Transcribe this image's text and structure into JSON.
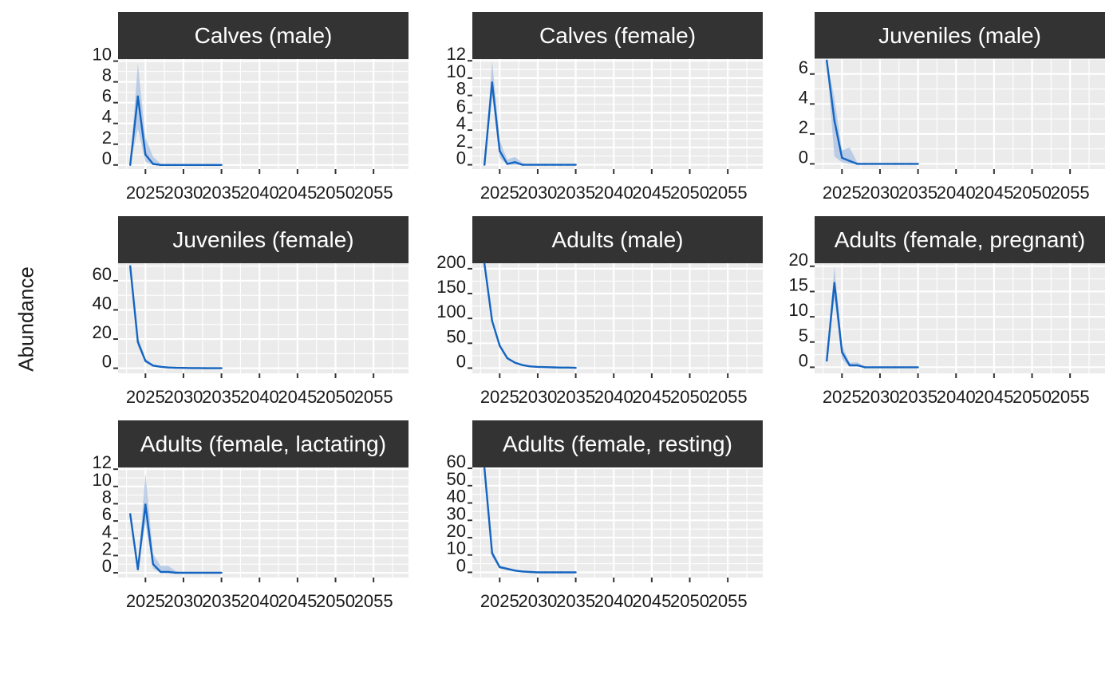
{
  "ylabel": "Abundance",
  "colors": {
    "line": "#1565C0",
    "ribbon": "#a9c1e3",
    "panel_bg": "#ebebeb",
    "strip_bg": "#333333",
    "strip_text": "#ffffff",
    "grid": "#ffffff"
  },
  "chart_data": [
    {
      "type": "line",
      "title": "Calves (male)",
      "x_ticks": [
        "2025",
        "2030",
        "2035",
        "2040",
        "2045",
        "2050",
        "2055"
      ],
      "y_ticks": [
        "0",
        "2",
        "4",
        "6",
        "8",
        "10"
      ],
      "xlim": [
        2021.4,
        2059.6
      ],
      "ylim": [
        -0.4,
        10.2
      ],
      "x": [
        2023,
        2024,
        2025,
        2026,
        2027,
        2028,
        2029,
        2030,
        2031,
        2032,
        2033,
        2034,
        2035
      ],
      "y": [
        0,
        6.6,
        1.0,
        0.1,
        0,
        0,
        0,
        0,
        0,
        0,
        0,
        0,
        0
      ],
      "ymin": [
        0,
        3.5,
        0.3,
        0,
        0,
        0,
        0,
        0,
        0,
        0,
        0,
        0,
        0
      ],
      "ymax": [
        0,
        9.8,
        2.6,
        0.8,
        0.1,
        0,
        0,
        0,
        0,
        0,
        0,
        0,
        0
      ]
    },
    {
      "type": "line",
      "title": "Calves (female)",
      "x_ticks": [
        "2025",
        "2030",
        "2035",
        "2040",
        "2045",
        "2050",
        "2055"
      ],
      "y_ticks": [
        "0",
        "2",
        "4",
        "6",
        "8",
        "10",
        "12"
      ],
      "xlim": [
        2021.4,
        2059.6
      ],
      "ylim": [
        -0.5,
        12.2
      ],
      "x": [
        2023,
        2024,
        2025,
        2026,
        2027,
        2028,
        2029,
        2030,
        2031,
        2032,
        2033,
        2034,
        2035
      ],
      "y": [
        0,
        9.5,
        1.6,
        0.1,
        0.3,
        0,
        0,
        0,
        0,
        0,
        0,
        0,
        0
      ],
      "ymin": [
        0,
        8.0,
        0.8,
        0,
        0,
        0,
        0,
        0,
        0,
        0,
        0,
        0,
        0
      ],
      "ymax": [
        0,
        12.0,
        2.8,
        0.6,
        0.9,
        0.2,
        0,
        0,
        0,
        0,
        0,
        0,
        0
      ]
    },
    {
      "type": "line",
      "title": "Juveniles (male)",
      "x_ticks": [
        "2025",
        "2030",
        "2035",
        "2040",
        "2045",
        "2050",
        "2055"
      ],
      "y_ticks": [
        "0",
        "2",
        "4",
        "6"
      ],
      "xlim": [
        2021.4,
        2059.6
      ],
      "ylim": [
        -0.35,
        7.0
      ],
      "x": [
        2023,
        2024,
        2025,
        2026,
        2027,
        2028,
        2029,
        2030,
        2031,
        2032,
        2033,
        2034,
        2035
      ],
      "y": [
        6.9,
        2.9,
        0.4,
        0.2,
        0,
        0,
        0,
        0,
        0,
        0,
        0,
        0,
        0
      ],
      "ymin": [
        6.9,
        0.5,
        0.1,
        0,
        0,
        0,
        0,
        0,
        0,
        0,
        0,
        0,
        0
      ],
      "ymax": [
        6.9,
        4.4,
        0.9,
        1.1,
        0.1,
        0,
        0,
        0,
        0,
        0,
        0,
        0,
        0
      ]
    },
    {
      "type": "line",
      "title": "Juveniles (female)",
      "x_ticks": [
        "2025",
        "2030",
        "2035",
        "2040",
        "2045",
        "2050",
        "2055"
      ],
      "y_ticks": [
        "0",
        "20",
        "40",
        "60"
      ],
      "xlim": [
        2021.4,
        2059.6
      ],
      "ylim": [
        -3.5,
        72
      ],
      "x": [
        2023,
        2024,
        2025,
        2026,
        2027,
        2028,
        2029,
        2030,
        2031,
        2032,
        2033,
        2034,
        2035
      ],
      "y": [
        70,
        18,
        5,
        1.8,
        1,
        0.5,
        0.3,
        0.2,
        0.1,
        0.1,
        0,
        0,
        0
      ],
      "ymin": [
        70,
        15,
        3.8,
        1.2,
        0.6,
        0.3,
        0.1,
        0.1,
        0,
        0,
        0,
        0,
        0
      ],
      "ymax": [
        70,
        21,
        6.5,
        2.6,
        1.5,
        0.8,
        0.5,
        0.3,
        0.2,
        0.1,
        0.1,
        0,
        0
      ]
    },
    {
      "type": "line",
      "title": "Adults (male)",
      "x_ticks": [
        "2025",
        "2030",
        "2035",
        "2040",
        "2045",
        "2050",
        "2055"
      ],
      "y_ticks": [
        "0",
        "50",
        "100",
        "150",
        "200"
      ],
      "xlim": [
        2021.4,
        2059.6
      ],
      "ylim": [
        -10.5,
        211
      ],
      "x": [
        2023,
        2024,
        2025,
        2026,
        2027,
        2028,
        2029,
        2030,
        2031,
        2032,
        2033,
        2034,
        2035
      ],
      "y": [
        210,
        95,
        45,
        20,
        11,
        6,
        3.5,
        2.5,
        2,
        1.5,
        1,
        1,
        0.5
      ],
      "ymin": [
        210,
        90,
        41,
        17,
        9,
        4.5,
        2.5,
        1.8,
        1.2,
        0.9,
        0.6,
        0.5,
        0.2
      ],
      "ymax": [
        210,
        100,
        49,
        23,
        13,
        7.5,
        4.5,
        3.2,
        2.6,
        2.0,
        1.5,
        1.3,
        0.9
      ]
    },
    {
      "type": "line",
      "title": "Adults (female, pregnant)",
      "x_ticks": [
        "2025",
        "2030",
        "2035",
        "2040",
        "2045",
        "2050",
        "2055"
      ],
      "y_ticks": [
        "0",
        "5",
        "10",
        "15",
        "20"
      ],
      "xlim": [
        2021.4,
        2059.6
      ],
      "ylim": [
        -1.2,
        20.6
      ],
      "x": [
        2023,
        2024,
        2025,
        2026,
        2027,
        2028,
        2029,
        2030,
        2031,
        2032,
        2033,
        2034,
        2035
      ],
      "y": [
        1.3,
        16.7,
        3.0,
        0.4,
        0.4,
        0,
        0,
        0,
        0,
        0,
        0,
        0,
        0
      ],
      "ymin": [
        1.3,
        13.5,
        1.6,
        0.1,
        0.1,
        0,
        0,
        0,
        0,
        0,
        0,
        0,
        0
      ],
      "ymax": [
        1.3,
        20.0,
        4.4,
        0.9,
        1.0,
        0.2,
        0,
        0,
        0,
        0,
        0,
        0,
        0
      ]
    },
    {
      "type": "line",
      "title": "Adults (female, lactating)",
      "x_ticks": [
        "2025",
        "2030",
        "2035",
        "2040",
        "2045",
        "2050",
        "2055"
      ],
      "y_ticks": [
        "0",
        "2",
        "4",
        "6",
        "8",
        "10",
        "12"
      ],
      "xlim": [
        2021.4,
        2059.6
      ],
      "ylim": [
        -0.55,
        12.2
      ],
      "x": [
        2023,
        2024,
        2025,
        2026,
        2027,
        2028,
        2029,
        2030,
        2031,
        2032,
        2033,
        2034,
        2035
      ],
      "y": [
        6.8,
        0.4,
        7.9,
        1.0,
        0.1,
        0.1,
        0,
        0,
        0,
        0,
        0,
        0,
        0
      ],
      "ymin": [
        6.8,
        0.4,
        5.8,
        0.5,
        0,
        0,
        0,
        0,
        0,
        0,
        0,
        0,
        0
      ],
      "ymax": [
        6.8,
        0.4,
        11.5,
        2.2,
        0.8,
        0.8,
        0.2,
        0,
        0,
        0,
        0,
        0,
        0
      ]
    },
    {
      "type": "line",
      "title": "Adults (female, resting)",
      "x_ticks": [
        "2025",
        "2030",
        "2035",
        "2040",
        "2045",
        "2050",
        "2055"
      ],
      "y_ticks": [
        "0",
        "10",
        "20",
        "30",
        "40",
        "50",
        "60"
      ],
      "xlim": [
        2021.4,
        2059.6
      ],
      "ylim": [
        -3.0,
        60.5
      ],
      "x": [
        2023,
        2024,
        2025,
        2026,
        2027,
        2028,
        2029,
        2030,
        2031,
        2032,
        2033,
        2034,
        2035
      ],
      "y": [
        60,
        11,
        3,
        2,
        1,
        0.5,
        0.2,
        0,
        0,
        0,
        0,
        0,
        0
      ],
      "ymin": [
        60,
        9,
        2.2,
        1.3,
        0.5,
        0.2,
        0,
        0,
        0,
        0,
        0,
        0,
        0
      ],
      "ymax": [
        60,
        13,
        4,
        2.8,
        1.6,
        0.9,
        0.4,
        0.2,
        0,
        0,
        0,
        0,
        0
      ]
    }
  ]
}
